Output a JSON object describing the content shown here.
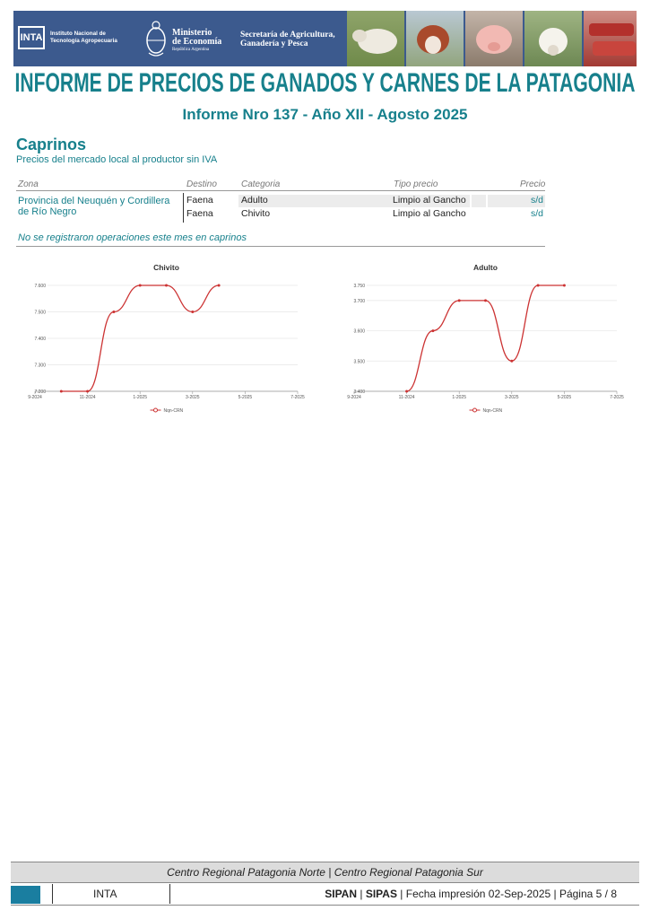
{
  "header": {
    "inta_logo": "INTA",
    "inta_name": "Instituto Nacional de Tecnología Agropecuaria",
    "ministry_line1": "Ministerio",
    "ministry_line2": "de Economía",
    "ministry_line3": "República Argentina",
    "secretaria": "Secretaría de Agricultura, Ganadería y Pesca",
    "main_title": "INFORME DE PRECIOS DE GANADOS Y CARNES DE LA PATAGONIA",
    "subtitle": "Informe Nro 137 - Año XII - Agosto 2025",
    "colors": {
      "banner": "#3c5a8e",
      "accent": "#17808c"
    }
  },
  "section": {
    "title": "Caprinos",
    "description": "Precios del mercado local al productor sin IVA"
  },
  "table": {
    "headers": {
      "zona": "Zona",
      "destino": "Destino",
      "categoria": "Categoria",
      "tipo": "Tipo precio",
      "precio": "Precio"
    },
    "zona": "Provincia del Neuquén y Cordillera de Río Negro",
    "rows": [
      {
        "destino": "Faena",
        "categoria": "Adulto",
        "tipo": "Limpio al Gancho",
        "precio": "s/d"
      },
      {
        "destino": "Faena",
        "categoria": "Chivito",
        "tipo": "Limpio al Gancho",
        "precio": "s/d"
      }
    ],
    "note": "No se registraron operaciones este mes en caprinos"
  },
  "chart_data": [
    {
      "type": "line",
      "title": "Chivito",
      "x_ticks": [
        "9-2024",
        "11-2024",
        "1-2025",
        "3-2025",
        "5-2025",
        "7-2025"
      ],
      "y_ticks": [
        "7.200",
        "7.300",
        "7.400",
        "7.500",
        "7.600"
      ],
      "ylim": [
        7200,
        7600
      ],
      "series": [
        {
          "name": "Nqn-CRN",
          "color": "#cc3333",
          "points": [
            [
              "10-2024",
              7200
            ],
            [
              "11-2024",
              7200
            ],
            [
              "12-2024",
              7500
            ],
            [
              "1-2025",
              7600
            ],
            [
              "2-2025",
              7600
            ],
            [
              "3-2025",
              7500
            ],
            [
              "4-2025",
              7600
            ]
          ]
        }
      ],
      "legend": "bottom-center",
      "grid": true
    },
    {
      "type": "line",
      "title": "Adulto",
      "x_ticks": [
        "9-2024",
        "11-2024",
        "1-2025",
        "3-2025",
        "5-2025",
        "7-2025"
      ],
      "y_ticks": [
        "3.400",
        "3.500",
        "3.600",
        "3.700",
        "3.750"
      ],
      "ylim": [
        3400,
        3750
      ],
      "series": [
        {
          "name": "Nqn-CRN",
          "color": "#cc3333",
          "points": [
            [
              "11-2024",
              3400
            ],
            [
              "12-2024",
              3600
            ],
            [
              "1-2025",
              3700
            ],
            [
              "2-2025",
              3700
            ],
            [
              "3-2025",
              3500
            ],
            [
              "4-2025",
              3750
            ],
            [
              "5-2025",
              3750
            ]
          ]
        }
      ],
      "legend": "bottom-center",
      "grid": true
    }
  ],
  "footer": {
    "line1": "Centro Regional Patagonia Norte | Centro Regional Patagonia Sur",
    "inta": "INTA",
    "sipan": "SIPAN",
    "sep": " | ",
    "sipas": "SIPAS",
    "rest": " | Fecha impresión 02-Sep-2025 | Página 5 / 8"
  }
}
